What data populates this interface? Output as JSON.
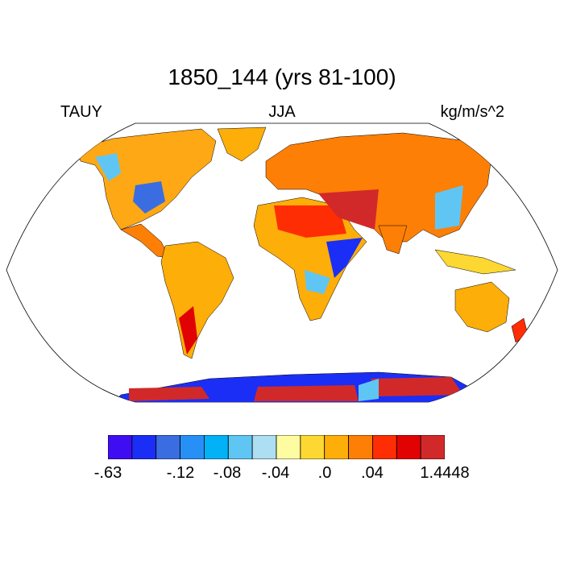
{
  "title": "1850_144 (yrs 81-100)",
  "variable": "TAUY",
  "season": "JJA",
  "units": "kg/m/s^2",
  "colorbar": {
    "colors": [
      "#3f0df2",
      "#1b2ef5",
      "#3a6de2",
      "#2790f6",
      "#03b1f6",
      "#5fc6f4",
      "#addef1",
      "#fefca0",
      "#fed832",
      "#fdae08",
      "#fe7f05",
      "#fe2d03",
      "#e10303",
      "#d12929"
    ],
    "labels": [
      "-.63",
      "-.12",
      "-.08",
      "-.04",
      ".0",
      ".04",
      "1.4448"
    ]
  }
}
